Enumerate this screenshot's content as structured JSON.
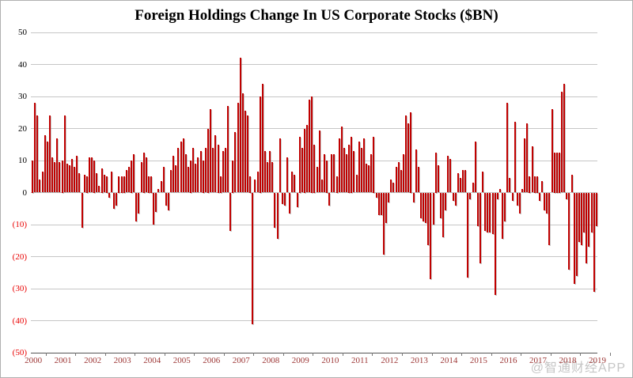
{
  "title": "Foreign Holdings Change In US Corporate Stocks ($BN)",
  "watermark": "@智通财经APP",
  "colors": {
    "bar": "#c00000",
    "grid": "#c6c6c6",
    "axis": "#555555",
    "neg_tick_label": "#e90000",
    "pos_tick_label": "#000000",
    "year_label": "#9c3534",
    "background": "#ffffff"
  },
  "chart_data": {
    "type": "bar",
    "title": "Foreign Holdings Change In US Corporate Stocks ($BN)",
    "xlabel": "",
    "ylabel": "",
    "ylim": [
      -50,
      50
    ],
    "grid": "horizontal",
    "legend": "none",
    "y_ticks": [
      {
        "value": 50,
        "label": "50"
      },
      {
        "value": 40,
        "label": "40"
      },
      {
        "value": 30,
        "label": "30"
      },
      {
        "value": 20,
        "label": "20"
      },
      {
        "value": 10,
        "label": "10"
      },
      {
        "value": 0,
        "label": "0"
      },
      {
        "value": -10,
        "label": "(10)"
      },
      {
        "value": -20,
        "label": "(20)"
      },
      {
        "value": -30,
        "label": "(30)"
      },
      {
        "value": -40,
        "label": "(40)"
      },
      {
        "value": -50,
        "label": "(50)"
      }
    ],
    "x_tick_years": [
      "2000",
      "2001",
      "2002",
      "2003",
      "2004",
      "2005",
      "2006",
      "2007",
      "2008",
      "2009",
      "2010",
      "2011",
      "2012",
      "2013",
      "2014",
      "2015",
      "2016",
      "2017",
      "2018",
      "2019"
    ],
    "frequency": "monthly",
    "start": "2000-01",
    "end": "2019-01",
    "values": [
      10,
      28,
      24,
      4,
      6.5,
      18,
      16,
      24,
      11,
      9.5,
      17,
      9.5,
      10,
      24,
      9,
      8.5,
      10.5,
      8,
      11.5,
      6,
      -11,
      5.5,
      5,
      11,
      11,
      10,
      6,
      2,
      7.5,
      5.5,
      5,
      -1.5,
      6.5,
      -5,
      -4,
      5,
      5,
      5,
      7,
      8,
      10,
      12,
      -9,
      -6.5,
      9.5,
      12.5,
      11,
      5,
      5,
      -10,
      -6,
      1,
      3.5,
      8,
      -4,
      -5.5,
      7,
      11.5,
      8.5,
      14,
      16,
      17,
      12,
      8,
      10,
      14,
      9,
      11,
      13,
      10,
      14,
      20,
      26,
      14,
      18,
      15,
      5,
      13,
      14,
      27,
      -12,
      10,
      19,
      28,
      42,
      31,
      25.5,
      24,
      5,
      -41,
      4,
      6.5,
      30,
      34,
      13,
      9.5,
      13,
      9.5,
      -11,
      -14.5,
      17,
      -3.5,
      -4,
      11,
      -6.5,
      6.5,
      5.5,
      -4.5,
      17.5,
      14,
      20,
      21,
      29,
      30,
      15,
      8,
      19.5,
      4,
      12,
      10,
      -4,
      12,
      12,
      5,
      17,
      20.5,
      14,
      12,
      15,
      17.5,
      13,
      5.5,
      16,
      14,
      17,
      9,
      8.5,
      12,
      17.5,
      -1.5,
      -7,
      -7,
      -19.5,
      -9.5,
      -3,
      4,
      3,
      8,
      9.5,
      7,
      12,
      24,
      21.5,
      25,
      -3,
      13.5,
      8,
      -8,
      -9,
      -9.5,
      -16.5,
      -27,
      -10,
      12.5,
      8.5,
      -8,
      -14,
      -5.5,
      11.5,
      10.5,
      -2.5,
      -4,
      6,
      4.5,
      7,
      7,
      -26.5,
      -2,
      3,
      16,
      -10.5,
      -22,
      6.5,
      -12,
      -12.5,
      -12.5,
      -13,
      -32,
      -2,
      1,
      -14.5,
      -9,
      28,
      4.5,
      -2.5,
      22,
      -4,
      -6.5,
      1,
      17,
      21.5,
      5,
      14.5,
      5,
      5,
      -2.5,
      3.5,
      -5.5,
      -6.5,
      -16.5,
      26,
      12.5,
      12.5,
      12.5,
      31.5,
      34,
      -2,
      -24,
      5.5,
      -28.5,
      -26,
      -15.5,
      -16.5,
      -12.5,
      -22,
      -17,
      -12.5,
      -31,
      -10.5
    ]
  }
}
